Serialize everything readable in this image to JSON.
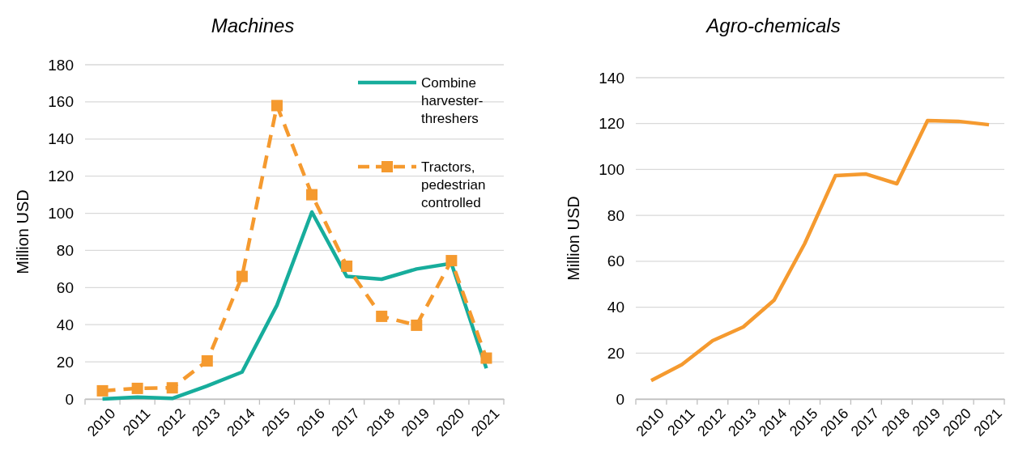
{
  "chart_data": [
    {
      "type": "line",
      "title": "Machines",
      "ylabel": "Million USD",
      "categories": [
        "2010",
        "2011",
        "2012",
        "2013",
        "2014",
        "2015",
        "2016",
        "2017",
        "2018",
        "2019",
        "2020",
        "2021"
      ],
      "ylim": [
        0,
        180
      ],
      "yticks": [
        0,
        20,
        40,
        60,
        80,
        100,
        120,
        140,
        160,
        180
      ],
      "grid": "y",
      "legend": "top right",
      "series": [
        {
          "name": "Combine harvester-threshers",
          "color": "#17ad9c",
          "line_style": "solid",
          "marker": "none",
          "values": [
            0,
            1,
            0.3,
            7,
            14.5,
            50.5,
            100.7,
            66,
            64.5,
            70,
            73,
            16.5
          ]
        },
        {
          "name": "Tractors, pedestrian controlled",
          "color": "#f59a2f",
          "line_style": "dashed",
          "marker": "square",
          "values": [
            4.4,
            5.7,
            6,
            20.5,
            66,
            158,
            110,
            71.5,
            44.5,
            39.7,
            74.5,
            22
          ]
        }
      ]
    },
    {
      "type": "line",
      "title": "Agro-chemicals",
      "ylabel": "Million USD",
      "categories": [
        "2010",
        "2011",
        "2012",
        "2013",
        "2014",
        "2015",
        "2016",
        "2017",
        "2018",
        "2019",
        "2020",
        "2021"
      ],
      "ylim": [
        0,
        140
      ],
      "yticks": [
        0,
        20,
        40,
        60,
        80,
        100,
        120,
        140
      ],
      "grid": "y",
      "series": [
        {
          "color": "#f59a2f",
          "line_style": "solid",
          "marker": "none",
          "values": [
            8,
            15,
            25.4,
            31.4,
            43,
            67.7,
            97.3,
            98,
            93.8,
            121.3,
            121,
            119.5
          ]
        }
      ]
    }
  ]
}
